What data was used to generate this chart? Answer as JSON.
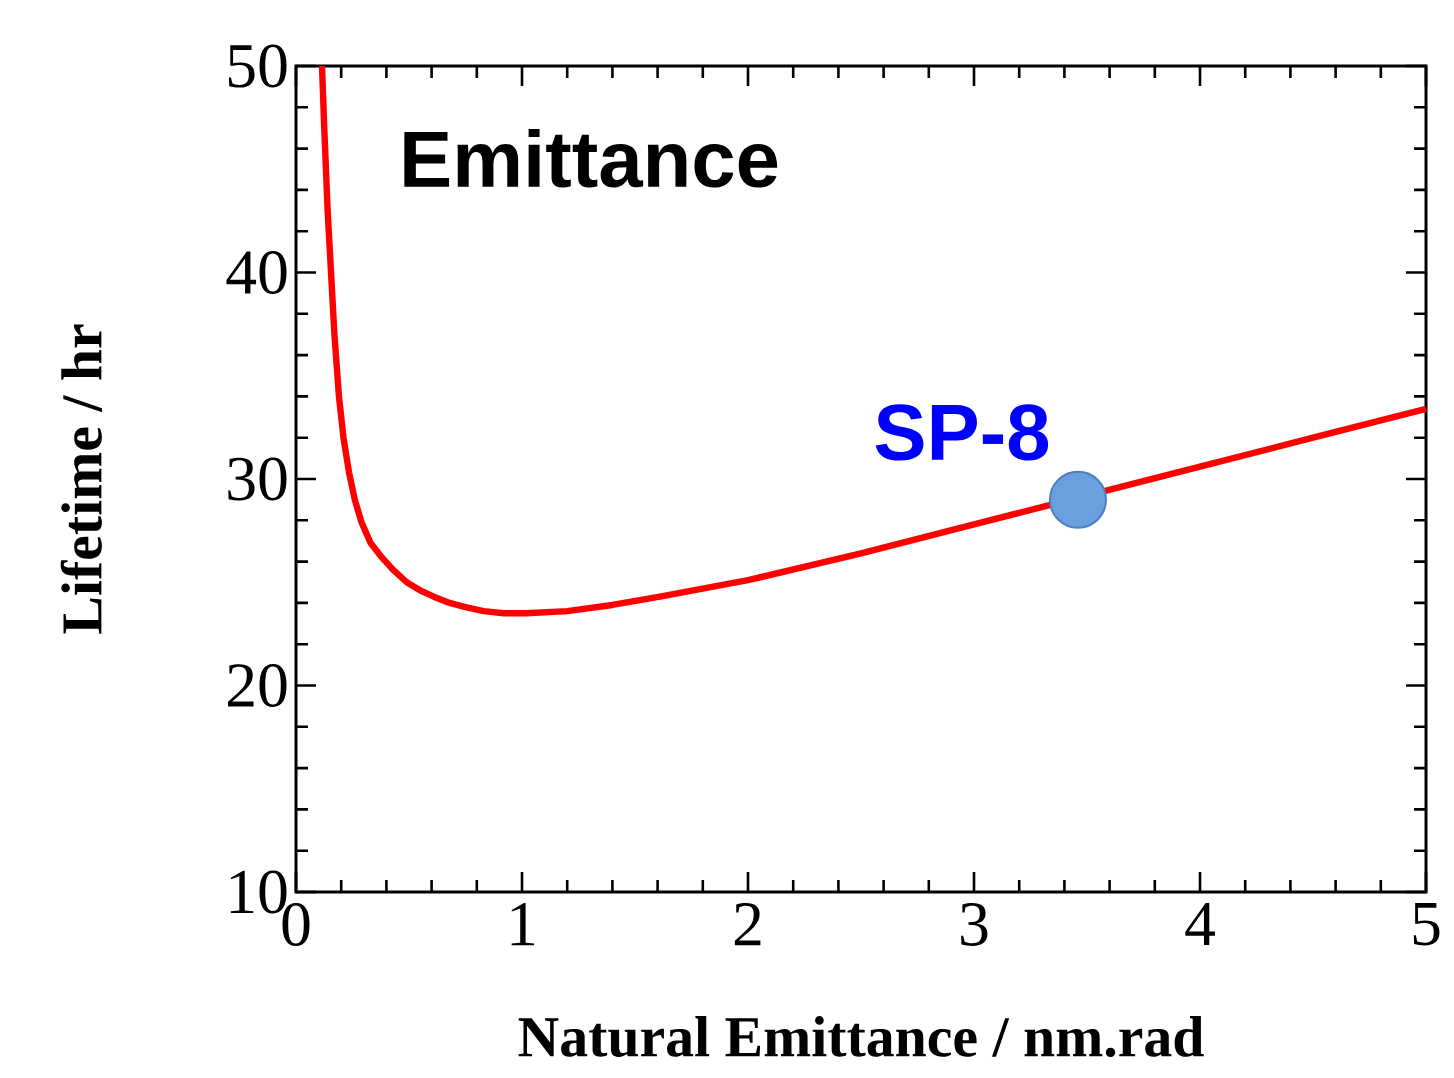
{
  "chart_data": {
    "type": "line",
    "xlabel": "Natural Emittance / nm.rad",
    "ylabel": "Lifetime / hr",
    "annotations": [
      "Emittance",
      {
        "text": "SP-8",
        "x": 3.46,
        "y": 29.0
      }
    ],
    "xlim": [
      0,
      5
    ],
    "ylim": [
      10,
      50
    ],
    "xticks": [
      0,
      1,
      2,
      3,
      4,
      5
    ],
    "yticks": [
      10,
      20,
      30,
      40,
      50
    ],
    "series": [
      {
        "color": "#ff0000",
        "x": [
          0.115,
          0.125,
          0.14,
          0.155,
          0.17,
          0.19,
          0.21,
          0.235,
          0.26,
          0.29,
          0.33,
          0.38,
          0.43,
          0.49,
          0.55,
          0.61,
          0.68,
          0.75,
          0.83,
          0.92,
          1.02,
          1.2,
          1.4,
          1.61,
          2,
          2.5,
          3,
          4,
          4.5,
          5
        ],
        "values": [
          50,
          47,
          43,
          40,
          37,
          34,
          32,
          30.3,
          29,
          27.9,
          26.9,
          26.2,
          25.6,
          25.0,
          24.6,
          24.3,
          24.0,
          23.8,
          23.6,
          23.5,
          23.5,
          23.6,
          23.9,
          24.3,
          25.1,
          26.4,
          27.8,
          30.6,
          32.0,
          33.4
        ]
      },
      {
        "type": "scatter",
        "marker": "circle",
        "color": "#6b9fe0",
        "x": [
          3.46
        ],
        "values": [
          29.0
        ]
      }
    ]
  }
}
